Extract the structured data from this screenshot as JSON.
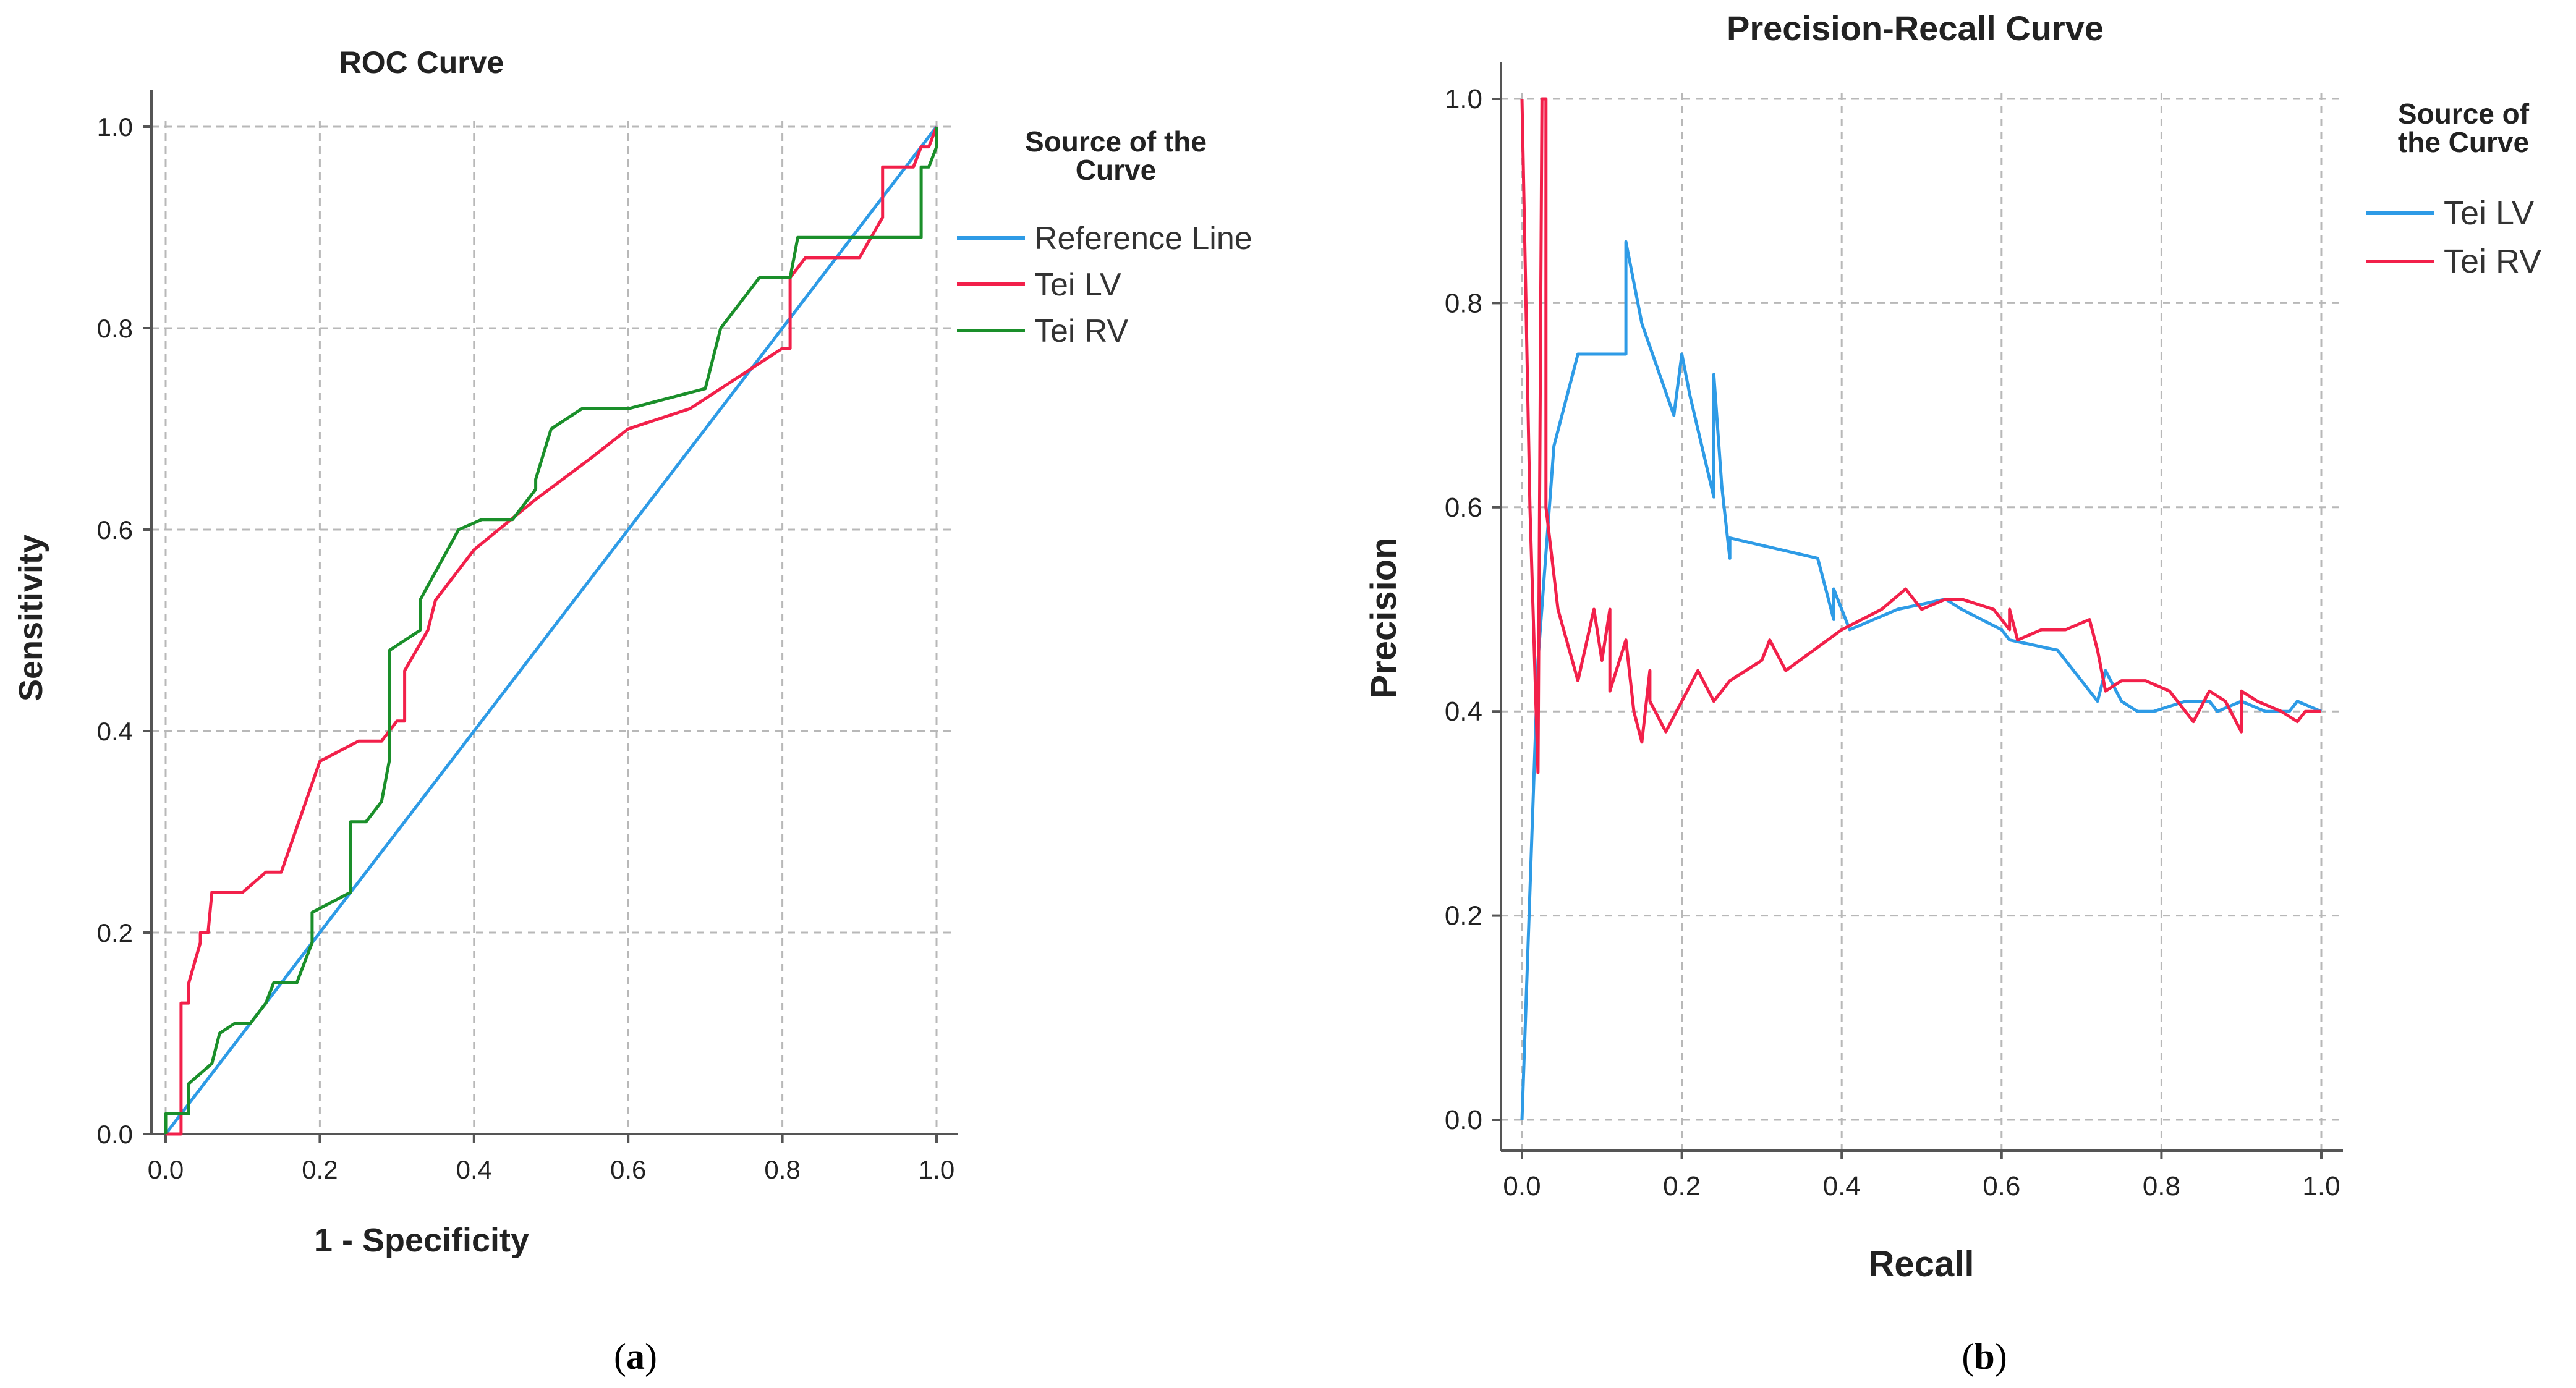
{
  "colors": {
    "reference_line": "#2e9be6",
    "tei_lv_roc": "#f2204a",
    "tei_rv_roc": "#1a8f2a",
    "tei_lv_pr": "#2e9be6",
    "tei_rv_pr": "#f2204a",
    "grid": "#b8b8b8",
    "axis": "#555555"
  },
  "panels": {
    "a": {
      "caption_open": "(",
      "caption_letter": "a",
      "caption_close": ")"
    },
    "b": {
      "caption_open": "(",
      "caption_letter": "b",
      "caption_close": ")"
    }
  },
  "chart_data": [
    {
      "type": "line",
      "title": "ROC Curve",
      "xlabel": "1 - Specificity",
      "ylabel": "Sensitivity",
      "xlim": [
        0,
        1
      ],
      "ylim": [
        0,
        1
      ],
      "xticks": [
        "0.0",
        "0.2",
        "0.4",
        "0.6",
        "0.8",
        "1.0"
      ],
      "yticks": [
        "0.0",
        "0.2",
        "0.4",
        "0.6",
        "0.8",
        "1.0"
      ],
      "grid": true,
      "legend_title": "Source of the Curve",
      "legend_position": "right",
      "series": [
        {
          "name": "Reference Line",
          "color_key": "reference_line",
          "x": [
            0,
            1
          ],
          "y": [
            0,
            1
          ]
        },
        {
          "name": "Tei LV",
          "color_key": "tei_lv_roc",
          "x": [
            0,
            0.02,
            0.02,
            0.03,
            0.03,
            0.045,
            0.045,
            0.055,
            0.06,
            0.06,
            0.1,
            0.13,
            0.15,
            0.2,
            0.25,
            0.28,
            0.3,
            0.31,
            0.31,
            0.34,
            0.35,
            0.4,
            0.48,
            0.55,
            0.6,
            0.68,
            0.72,
            0.8,
            0.81,
            0.81,
            0.83,
            0.9,
            0.93,
            0.93,
            0.97,
            0.98,
            0.99,
            1.0
          ],
          "y": [
            0,
            0,
            0.13,
            0.13,
            0.15,
            0.19,
            0.2,
            0.2,
            0.24,
            0.24,
            0.24,
            0.26,
            0.26,
            0.37,
            0.39,
            0.39,
            0.41,
            0.41,
            0.46,
            0.5,
            0.53,
            0.58,
            0.63,
            0.67,
            0.7,
            0.72,
            0.74,
            0.78,
            0.78,
            0.85,
            0.87,
            0.87,
            0.91,
            0.96,
            0.96,
            0.98,
            0.98,
            1.0
          ]
        },
        {
          "name": "Tei RV",
          "color_key": "tei_rv_roc",
          "x": [
            0,
            0,
            0.03,
            0.03,
            0.06,
            0.07,
            0.09,
            0.11,
            0.13,
            0.14,
            0.17,
            0.19,
            0.19,
            0.24,
            0.24,
            0.26,
            0.28,
            0.29,
            0.29,
            0.33,
            0.33,
            0.38,
            0.41,
            0.45,
            0.48,
            0.48,
            0.5,
            0.54,
            0.6,
            0.65,
            0.7,
            0.72,
            0.75,
            0.77,
            0.81,
            0.82,
            0.84,
            0.98,
            0.98,
            0.99,
            1.0,
            1.0
          ],
          "y": [
            0,
            0.02,
            0.02,
            0.05,
            0.07,
            0.1,
            0.11,
            0.11,
            0.13,
            0.15,
            0.15,
            0.19,
            0.22,
            0.24,
            0.31,
            0.31,
            0.33,
            0.37,
            0.48,
            0.5,
            0.53,
            0.6,
            0.61,
            0.61,
            0.64,
            0.65,
            0.7,
            0.72,
            0.72,
            0.73,
            0.74,
            0.8,
            0.83,
            0.85,
            0.85,
            0.89,
            0.89,
            0.89,
            0.96,
            0.96,
            0.98,
            1.0
          ]
        }
      ]
    },
    {
      "type": "line",
      "title": "Precision-Recall Curve",
      "xlabel": "Recall",
      "ylabel": "Precision",
      "xlim": [
        0,
        1
      ],
      "ylim": [
        0,
        1
      ],
      "xticks": [
        "0.0",
        "0.2",
        "0.4",
        "0.6",
        "0.8",
        "1.0"
      ],
      "yticks": [
        "0.0",
        "0.2",
        "0.4",
        "0.6",
        "0.8",
        "1.0"
      ],
      "grid": true,
      "legend_title": "Source of the Curve",
      "legend_position": "top-right",
      "series": [
        {
          "name": "Tei LV",
          "color_key": "tei_lv_pr",
          "x": [
            0,
            0.02,
            0.04,
            0.07,
            0.13,
            0.13,
            0.15,
            0.19,
            0.2,
            0.21,
            0.24,
            0.24,
            0.25,
            0.26,
            0.26,
            0.37,
            0.39,
            0.39,
            0.41,
            0.44,
            0.47,
            0.53,
            0.55,
            0.6,
            0.61,
            0.67,
            0.7,
            0.72,
            0.73,
            0.75,
            0.77,
            0.79,
            0.83,
            0.86,
            0.87,
            0.9,
            0.93,
            0.96,
            0.97,
            1.0
          ],
          "y": [
            0,
            0.45,
            0.66,
            0.75,
            0.75,
            0.86,
            0.78,
            0.69,
            0.75,
            0.71,
            0.61,
            0.73,
            0.62,
            0.55,
            0.57,
            0.55,
            0.49,
            0.52,
            0.48,
            0.49,
            0.5,
            0.51,
            0.5,
            0.48,
            0.47,
            0.46,
            0.43,
            0.41,
            0.44,
            0.41,
            0.4,
            0.4,
            0.41,
            0.41,
            0.4,
            0.41,
            0.4,
            0.4,
            0.41,
            0.4
          ]
        },
        {
          "name": "Tei RV",
          "color_key": "tei_rv_pr",
          "x": [
            0,
            0.01,
            0.02,
            0.025,
            0.03,
            0.03,
            0.045,
            0.07,
            0.09,
            0.1,
            0.11,
            0.11,
            0.13,
            0.14,
            0.15,
            0.16,
            0.16,
            0.18,
            0.22,
            0.24,
            0.26,
            0.3,
            0.31,
            0.33,
            0.4,
            0.45,
            0.48,
            0.5,
            0.53,
            0.55,
            0.59,
            0.61,
            0.61,
            0.62,
            0.65,
            0.68,
            0.71,
            0.72,
            0.73,
            0.75,
            0.78,
            0.81,
            0.84,
            0.86,
            0.88,
            0.9,
            0.9,
            0.92,
            0.95,
            0.97,
            0.98,
            1.0
          ],
          "y": [
            1.0,
            0.6,
            0.34,
            1.0,
            1.0,
            0.6,
            0.5,
            0.43,
            0.5,
            0.45,
            0.5,
            0.42,
            0.47,
            0.4,
            0.37,
            0.44,
            0.41,
            0.38,
            0.44,
            0.41,
            0.43,
            0.45,
            0.47,
            0.44,
            0.48,
            0.5,
            0.52,
            0.5,
            0.51,
            0.51,
            0.5,
            0.48,
            0.5,
            0.47,
            0.48,
            0.48,
            0.49,
            0.46,
            0.42,
            0.43,
            0.43,
            0.42,
            0.39,
            0.42,
            0.41,
            0.38,
            0.42,
            0.41,
            0.4,
            0.39,
            0.4,
            0.4
          ]
        }
      ]
    }
  ]
}
